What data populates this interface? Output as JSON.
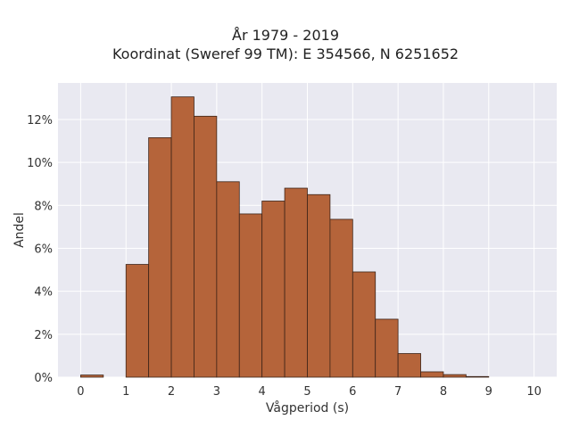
{
  "chart_data": {
    "type": "bar",
    "title": "År 1979 - 2019",
    "subtitle": "Koordinat (Sweref 99 TM): E 354566, N 6251652",
    "xlabel": "Vågperiod (s)",
    "ylabel": "Andel",
    "bin_width": 0.5,
    "bins_start": [
      0,
      0.5,
      1,
      1.5,
      2,
      2.5,
      3,
      3.5,
      4,
      4.5,
      5,
      5.5,
      6,
      6.5,
      7,
      7.5,
      8,
      8.5,
      9,
      9.5
    ],
    "values": [
      0.1,
      0,
      5.25,
      11.15,
      13.05,
      12.15,
      9.1,
      7.6,
      8.2,
      8.8,
      8.5,
      7.35,
      4.9,
      2.7,
      1.1,
      0.25,
      0.12,
      0.03,
      0,
      0
    ],
    "xlim": [
      -0.5,
      10.5
    ],
    "ylim": [
      0,
      13.7
    ],
    "x_ticks": [
      0,
      1,
      2,
      3,
      4,
      5,
      6,
      7,
      8,
      9,
      10
    ],
    "y_ticks": [
      0,
      2,
      4,
      6,
      8,
      10,
      12
    ],
    "y_tick_suffix": "%",
    "grid": true,
    "colors": {
      "bar_fill": "#b5643a",
      "bar_edge": "#3d2418",
      "plot_bg": "#e9e9f1",
      "grid": "#ffffff"
    }
  }
}
